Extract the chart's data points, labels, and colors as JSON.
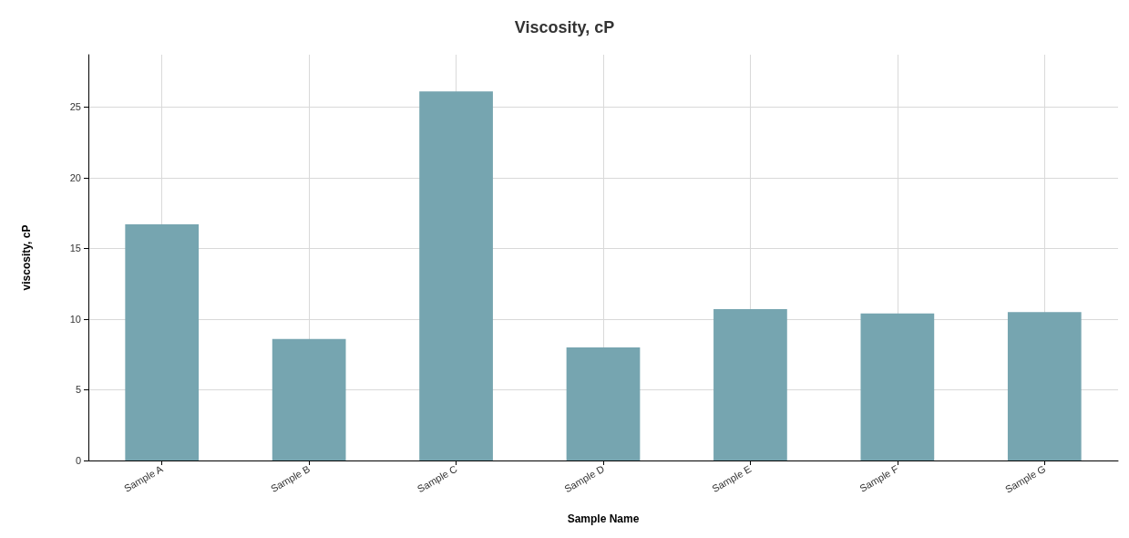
{
  "chart_data": {
    "type": "bar",
    "title": "Viscosity, cP",
    "xlabel": "Sample Name",
    "ylabel": "viscosity, cP",
    "categories": [
      "Sample A",
      "Sample B",
      "Sample C",
      "Sample D",
      "Sample E",
      "Sample F",
      "Sample G"
    ],
    "values": [
      16.7,
      8.6,
      26.1,
      8.0,
      10.7,
      10.4,
      10.5
    ],
    "color": "#76a5b0",
    "ylim": [
      0,
      28.7
    ],
    "yticks": [
      0,
      5,
      10,
      15,
      20,
      25
    ],
    "grid": true
  }
}
